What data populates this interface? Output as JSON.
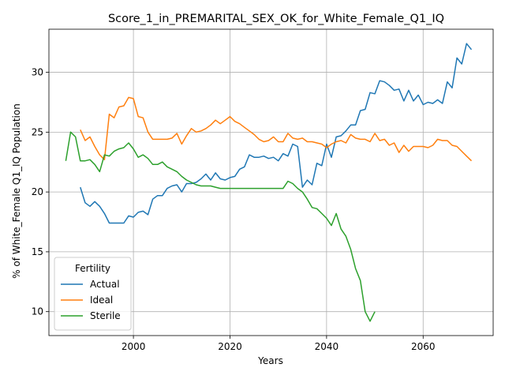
{
  "chart_data": {
    "type": "line",
    "title": "Score_1_in_PREMARITAL_SEX_OK_for_White_Female_Q1_IQ",
    "xlabel": "Years",
    "ylabel": "% of White_Female Q1_IQ Population",
    "xlim": [
      1982.5,
      2074.5
    ],
    "ylim": [
      8.0,
      33.6
    ],
    "xticks": [
      2000,
      2020,
      2040,
      2060
    ],
    "yticks": [
      10,
      15,
      20,
      25,
      30
    ],
    "grid": true,
    "legend": {
      "title": "Fertility",
      "position": "lower-left"
    },
    "series": [
      {
        "name": "Actual",
        "color": "#1f77b4",
        "x": [
          1989,
          1990,
          1991,
          1992,
          1993,
          1994,
          1995,
          1996,
          1997,
          1998,
          1999,
          2000,
          2001,
          2002,
          2003,
          2004,
          2005,
          2006,
          2007,
          2008,
          2009,
          2010,
          2011,
          2012,
          2013,
          2014,
          2015,
          2016,
          2017,
          2018,
          2019,
          2020,
          2021,
          2022,
          2023,
          2024,
          2025,
          2026,
          2027,
          2028,
          2029,
          2030,
          2031,
          2032,
          2033,
          2034,
          2035,
          2036,
          2037,
          2038,
          2039,
          2040,
          2041,
          2042,
          2043,
          2044,
          2045,
          2046,
          2047,
          2048,
          2049,
          2050,
          2051,
          2052,
          2053,
          2054,
          2055,
          2056,
          2057,
          2058,
          2059,
          2060,
          2061,
          2062,
          2063,
          2064,
          2065,
          2066,
          2067,
          2068,
          2069,
          2070
        ],
        "values": [
          20.4,
          19.1,
          18.8,
          19.2,
          18.8,
          18.2,
          17.4,
          17.4,
          17.4,
          17.4,
          18.0,
          17.9,
          18.3,
          18.4,
          18.1,
          19.4,
          19.7,
          19.7,
          20.3,
          20.5,
          20.6,
          20.0,
          20.7,
          20.7,
          20.8,
          21.1,
          21.5,
          21.0,
          21.6,
          21.1,
          21.0,
          21.2,
          21.3,
          21.9,
          22.1,
          23.1,
          22.9,
          22.9,
          23.0,
          22.8,
          22.9,
          22.6,
          23.2,
          23.0,
          24.0,
          23.8,
          20.4,
          21.0,
          20.6,
          22.4,
          22.2,
          24.0,
          22.9,
          24.6,
          24.7,
          25.1,
          25.6,
          25.6,
          26.8,
          26.9,
          28.3,
          28.2,
          29.3,
          29.2,
          28.9,
          28.5,
          28.6,
          27.6,
          28.5,
          27.6,
          28.1,
          27.3,
          27.5,
          27.4,
          27.7,
          27.4,
          29.2,
          28.7,
          31.2,
          30.7,
          32.4,
          31.9
        ]
      },
      {
        "name": "Ideal",
        "color": "#ff7f0e",
        "x": [
          1989,
          1990,
          1991,
          1992,
          1993,
          1994,
          1995,
          1996,
          1997,
          1998,
          1999,
          2000,
          2001,
          2002,
          2003,
          2004,
          2005,
          2006,
          2007,
          2008,
          2009,
          2010,
          2011,
          2012,
          2013,
          2014,
          2015,
          2016,
          2017,
          2018,
          2019,
          2020,
          2021,
          2022,
          2023,
          2024,
          2025,
          2026,
          2027,
          2028,
          2029,
          2030,
          2031,
          2032,
          2033,
          2034,
          2035,
          2036,
          2037,
          2038,
          2039,
          2040,
          2041,
          2042,
          2043,
          2044,
          2045,
          2046,
          2047,
          2048,
          2049,
          2050,
          2051,
          2052,
          2053,
          2054,
          2055,
          2056,
          2057,
          2058,
          2059,
          2060,
          2061,
          2062,
          2063,
          2064,
          2065,
          2066,
          2067,
          2068,
          2069,
          2070
        ],
        "values": [
          25.2,
          24.3,
          24.6,
          23.8,
          23.1,
          22.7,
          26.5,
          26.2,
          27.1,
          27.2,
          27.9,
          27.8,
          26.3,
          26.2,
          25.0,
          24.4,
          24.4,
          24.4,
          24.4,
          24.5,
          24.9,
          24.0,
          24.7,
          25.3,
          25.0,
          25.1,
          25.3,
          25.6,
          26.0,
          25.7,
          26.0,
          26.3,
          25.9,
          25.7,
          25.4,
          25.1,
          24.8,
          24.4,
          24.2,
          24.3,
          24.6,
          24.2,
          24.2,
          24.9,
          24.5,
          24.4,
          24.5,
          24.2,
          24.2,
          24.1,
          24.0,
          23.7,
          24.0,
          24.2,
          24.3,
          24.1,
          24.8,
          24.5,
          24.4,
          24.4,
          24.2,
          24.9,
          24.3,
          24.4,
          23.9,
          24.1,
          23.3,
          23.9,
          23.4,
          23.8,
          23.8,
          23.8,
          23.7,
          23.9,
          24.4,
          24.3,
          24.3,
          23.9,
          23.8,
          23.4,
          23.0,
          22.6
        ]
      },
      {
        "name": "Sterile",
        "color": "#2ca02c",
        "x": [
          1986,
          1987,
          1988,
          1989,
          1990,
          1991,
          1992,
          1993,
          1994,
          1995,
          1996,
          1997,
          1998,
          1999,
          2000,
          2001,
          2002,
          2003,
          2004,
          2005,
          2006,
          2007,
          2008,
          2009,
          2010,
          2011,
          2012,
          2013,
          2014,
          2015,
          2016,
          2017,
          2018,
          2019,
          2020,
          2021,
          2022,
          2023,
          2024,
          2025,
          2026,
          2027,
          2028,
          2029,
          2030,
          2031,
          2032,
          2033,
          2034,
          2035,
          2036,
          2037,
          2038,
          2039,
          2040,
          2041,
          2042,
          2043,
          2044,
          2045,
          2046,
          2047,
          2048,
          2049,
          2050
        ],
        "values": [
          22.6,
          25.0,
          24.6,
          22.6,
          22.6,
          22.7,
          22.3,
          21.7,
          23.1,
          23.0,
          23.4,
          23.6,
          23.7,
          24.1,
          23.6,
          22.9,
          23.1,
          22.8,
          22.3,
          22.3,
          22.5,
          22.1,
          21.9,
          21.7,
          21.3,
          21.0,
          20.8,
          20.6,
          20.5,
          20.5,
          20.5,
          20.4,
          20.3,
          20.3,
          20.3,
          20.3,
          20.3,
          20.3,
          20.3,
          20.3,
          20.3,
          20.3,
          20.3,
          20.3,
          20.3,
          20.3,
          20.9,
          20.7,
          20.3,
          20.0,
          19.4,
          18.7,
          18.6,
          18.2,
          17.8,
          17.2,
          18.2,
          16.9,
          16.3,
          15.2,
          13.6,
          12.6,
          10.0,
          9.2,
          10.0
        ]
      }
    ]
  }
}
